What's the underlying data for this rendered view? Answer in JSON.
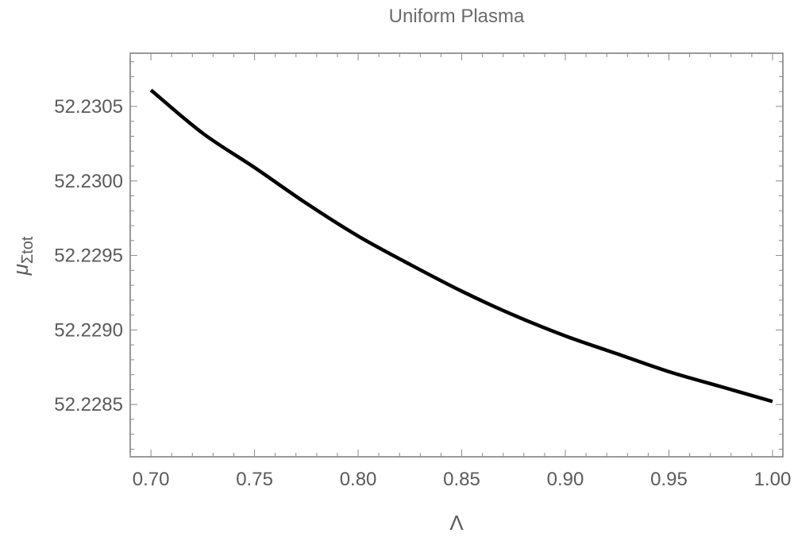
{
  "chart_data": {
    "type": "line",
    "title": "Uniform Plasma",
    "xlabel": "Λ",
    "ylabel": "μ",
    "ylabel_sub": "Σtot",
    "xlim": [
      0.69,
      1.005
    ],
    "ylim": [
      52.228149,
      52.230857
    ],
    "x_ticks": [
      0.7,
      0.75,
      0.8,
      0.85,
      0.9,
      0.95,
      1.0
    ],
    "x_tick_labels": [
      "0.70",
      "0.75",
      "0.80",
      "0.85",
      "0.90",
      "0.95",
      "1.00"
    ],
    "y_ticks": [
      52.2285,
      52.229,
      52.2295,
      52.23,
      52.2305
    ],
    "y_tick_labels": [
      "52.2285",
      "52.2290",
      "52.2295",
      "52.2300",
      "52.2305"
    ],
    "grid": false,
    "series": [
      {
        "x": [
          0.7,
          0.725,
          0.75,
          0.775,
          0.8,
          0.825,
          0.85,
          0.875,
          0.9,
          0.925,
          0.95,
          0.975,
          1.0
        ],
        "y": [
          52.23061,
          52.23032,
          52.23009,
          52.22985,
          52.22963,
          52.22944,
          52.22926,
          52.2291,
          52.22896,
          52.22884,
          52.22872,
          52.22862,
          52.22852
        ]
      }
    ]
  },
  "colors": {
    "line": "#000000",
    "frame": "#6e6e6e",
    "text": "#5a5a5a"
  }
}
